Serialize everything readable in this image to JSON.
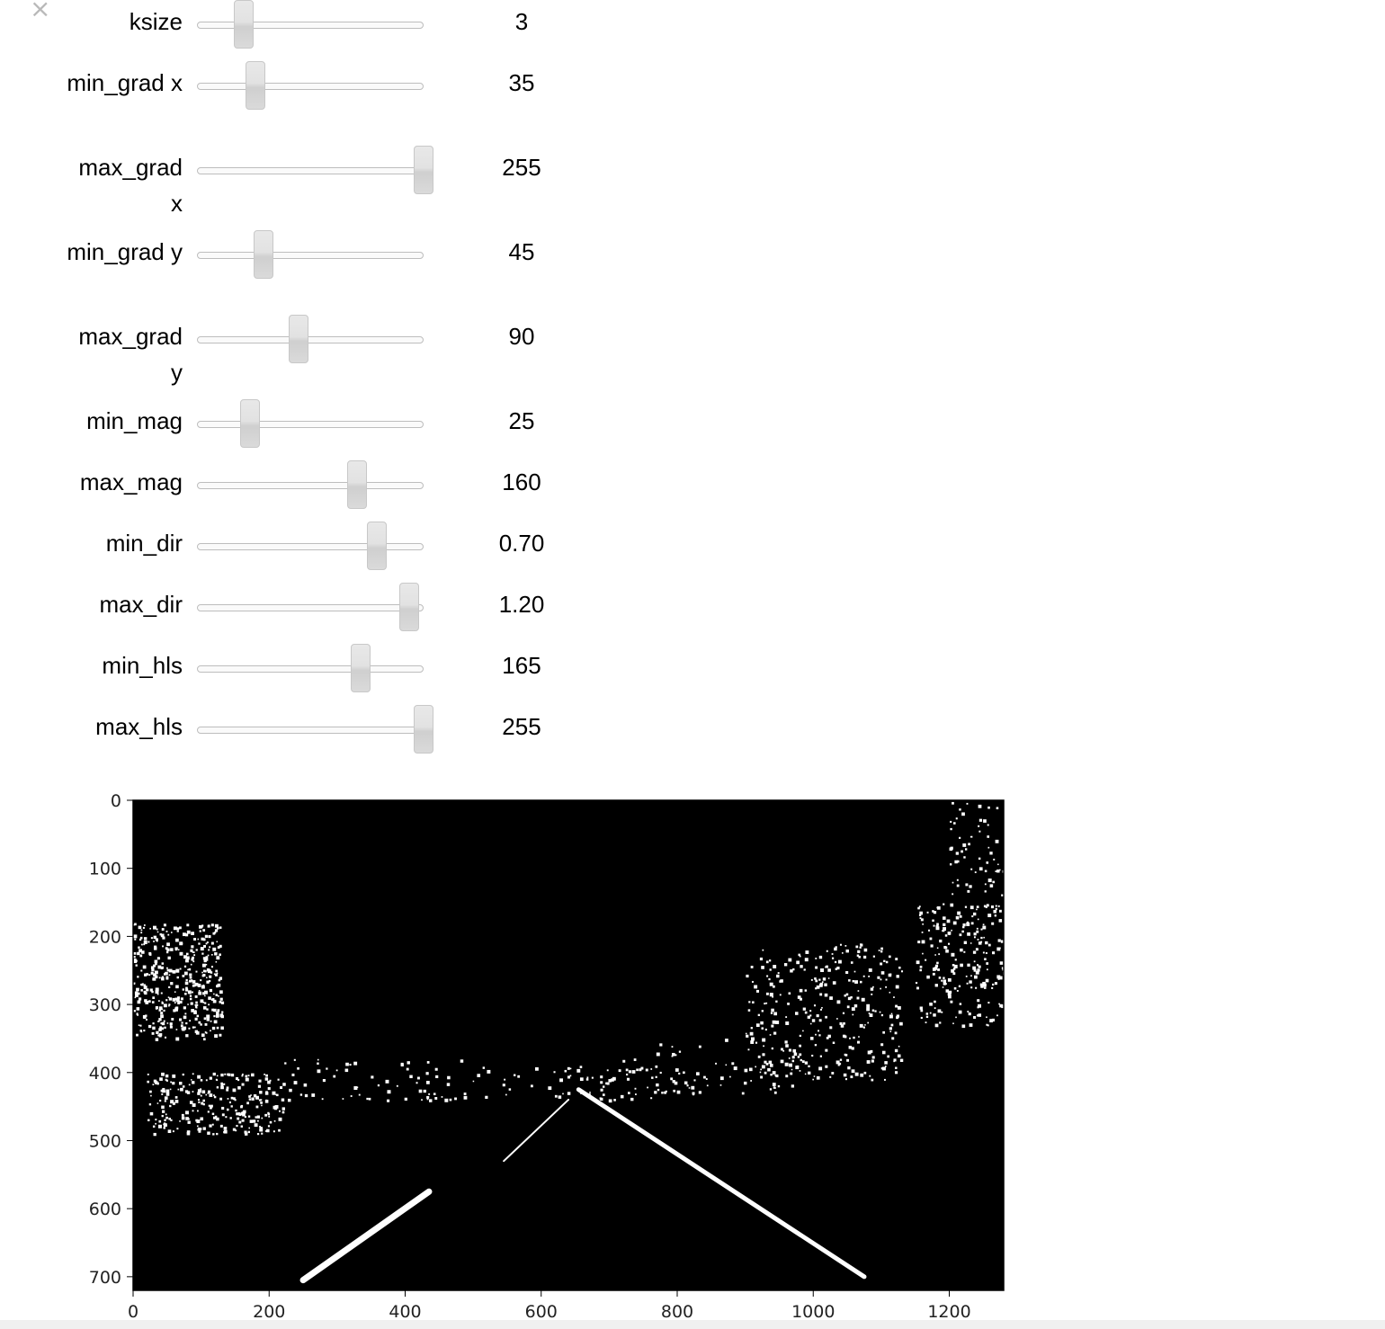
{
  "widget": {
    "close_symbol": "×",
    "sliders": [
      {
        "key": "ksize",
        "label": "ksize",
        "value_text": "3",
        "fraction": 0.11
      },
      {
        "key": "min_grad_x",
        "label": "min_grad x",
        "value_text": "35",
        "fraction": 0.17
      },
      {
        "key": "max_grad_x",
        "label": "max_grad x",
        "value_text": "255",
        "fraction": 1.0
      },
      {
        "key": "min_grad_y",
        "label": "min_grad y",
        "value_text": "45",
        "fraction": 0.21
      },
      {
        "key": "max_grad_y",
        "label": "max_grad y",
        "value_text": "90",
        "fraction": 0.38
      },
      {
        "key": "min_mag",
        "label": "min_mag",
        "value_text": "25",
        "fraction": 0.14
      },
      {
        "key": "max_mag",
        "label": "max_mag",
        "value_text": "160",
        "fraction": 0.67
      },
      {
        "key": "min_dir",
        "label": "min_dir",
        "value_text": "0.70",
        "fraction": 0.77
      },
      {
        "key": "max_dir",
        "label": "max_dir",
        "value_text": "1.20",
        "fraction": 0.93
      },
      {
        "key": "min_hls",
        "label": "min_hls",
        "value_text": "165",
        "fraction": 0.69
      },
      {
        "key": "max_hls",
        "label": "max_hls",
        "value_text": "255",
        "fraction": 1.0
      }
    ]
  },
  "chart_data": {
    "type": "image",
    "x_ticks": [
      "0",
      "200",
      "400",
      "600",
      "800",
      "1000",
      "1200"
    ],
    "y_ticks": [
      "0",
      "100",
      "200",
      "300",
      "400",
      "500",
      "600",
      "700"
    ],
    "xlim": [
      0,
      1280
    ],
    "ylim": [
      720,
      0
    ],
    "colors": {
      "background": "#000000",
      "foreground": "#ffffff"
    }
  }
}
